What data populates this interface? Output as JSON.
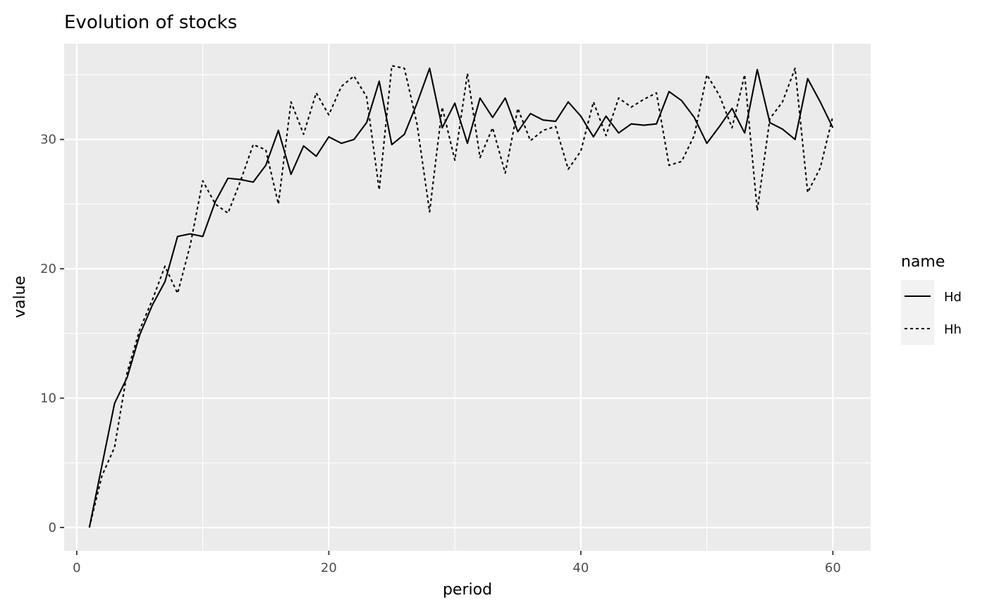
{
  "chart_data": {
    "type": "line",
    "title": "Evolution of stocks",
    "xlabel": "period",
    "ylabel": "value",
    "xlim": [
      -1,
      63
    ],
    "ylim": [
      -1.8,
      37.4
    ],
    "x_ticks": [
      0,
      20,
      40,
      60
    ],
    "y_ticks": [
      0,
      10,
      20,
      30
    ],
    "x_tick_labels": [
      "0",
      "20",
      "40",
      "60"
    ],
    "y_tick_labels": [
      "0",
      "10",
      "20",
      "30"
    ],
    "grid": true,
    "legend": {
      "title": "name",
      "position": "right",
      "entries": [
        "Hd",
        "Hh"
      ]
    },
    "series": [
      {
        "name": "Hd",
        "line_style": "solid",
        "color": "#000000",
        "x": [
          1,
          2,
          3,
          4,
          5,
          6,
          7,
          8,
          9,
          10,
          11,
          12,
          13,
          14,
          15,
          16,
          17,
          18,
          19,
          20,
          21,
          22,
          23,
          24,
          25,
          26,
          27,
          28,
          29,
          30,
          31,
          32,
          33,
          34,
          35,
          36,
          37,
          38,
          39,
          40,
          41,
          42,
          43,
          44,
          45,
          46,
          47,
          48,
          49,
          50,
          51,
          52,
          53,
          54,
          55,
          56,
          57,
          58,
          59,
          60
        ],
        "values": [
          0,
          4.8,
          9.6,
          11.6,
          14.9,
          17.2,
          19.0,
          22.5,
          22.7,
          22.5,
          25.2,
          27.0,
          26.9,
          26.7,
          28.0,
          30.7,
          27.3,
          29.5,
          28.7,
          30.2,
          29.7,
          30.0,
          31.3,
          34.5,
          29.6,
          30.4,
          32.8,
          35.5,
          30.9,
          32.8,
          29.7,
          33.2,
          31.7,
          33.2,
          30.6,
          32.0,
          31.5,
          31.4,
          32.9,
          31.8,
          30.2,
          31.8,
          30.5,
          31.2,
          31.1,
          31.2,
          33.7,
          33.0,
          31.7,
          29.7,
          31.0,
          32.4,
          30.5,
          35.4,
          31.3,
          30.8,
          30.0,
          34.7,
          32.9,
          30.9
        ]
      },
      {
        "name": "Hh",
        "line_style": "dashed",
        "color": "#000000",
        "x": [
          1,
          2,
          3,
          4,
          5,
          6,
          7,
          8,
          9,
          10,
          11,
          12,
          13,
          14,
          15,
          16,
          17,
          18,
          19,
          20,
          21,
          22,
          23,
          24,
          25,
          26,
          27,
          28,
          29,
          30,
          31,
          32,
          33,
          34,
          35,
          36,
          37,
          38,
          39,
          40,
          41,
          42,
          43,
          44,
          45,
          46,
          47,
          48,
          49,
          50,
          51,
          52,
          53,
          54,
          55,
          56,
          57,
          58,
          59,
          60
        ],
        "values": [
          0,
          4.0,
          6.2,
          12.0,
          15.3,
          17.6,
          20.2,
          18.1,
          21.8,
          26.8,
          25.0,
          24.3,
          26.8,
          29.6,
          29.2,
          25.0,
          32.9,
          30.4,
          33.6,
          31.9,
          34.1,
          34.9,
          33.3,
          26.1,
          35.7,
          35.5,
          31.2,
          24.4,
          32.5,
          28.4,
          35.1,
          28.6,
          30.9,
          27.4,
          32.4,
          29.9,
          30.7,
          31.0,
          27.7,
          29.1,
          32.9,
          30.3,
          33.2,
          32.5,
          33.1,
          33.6,
          28.0,
          28.3,
          30.3,
          35.0,
          33.4,
          30.9,
          35.0,
          24.5,
          31.6,
          32.9,
          35.5,
          25.9,
          27.8,
          31.8
        ]
      }
    ]
  }
}
